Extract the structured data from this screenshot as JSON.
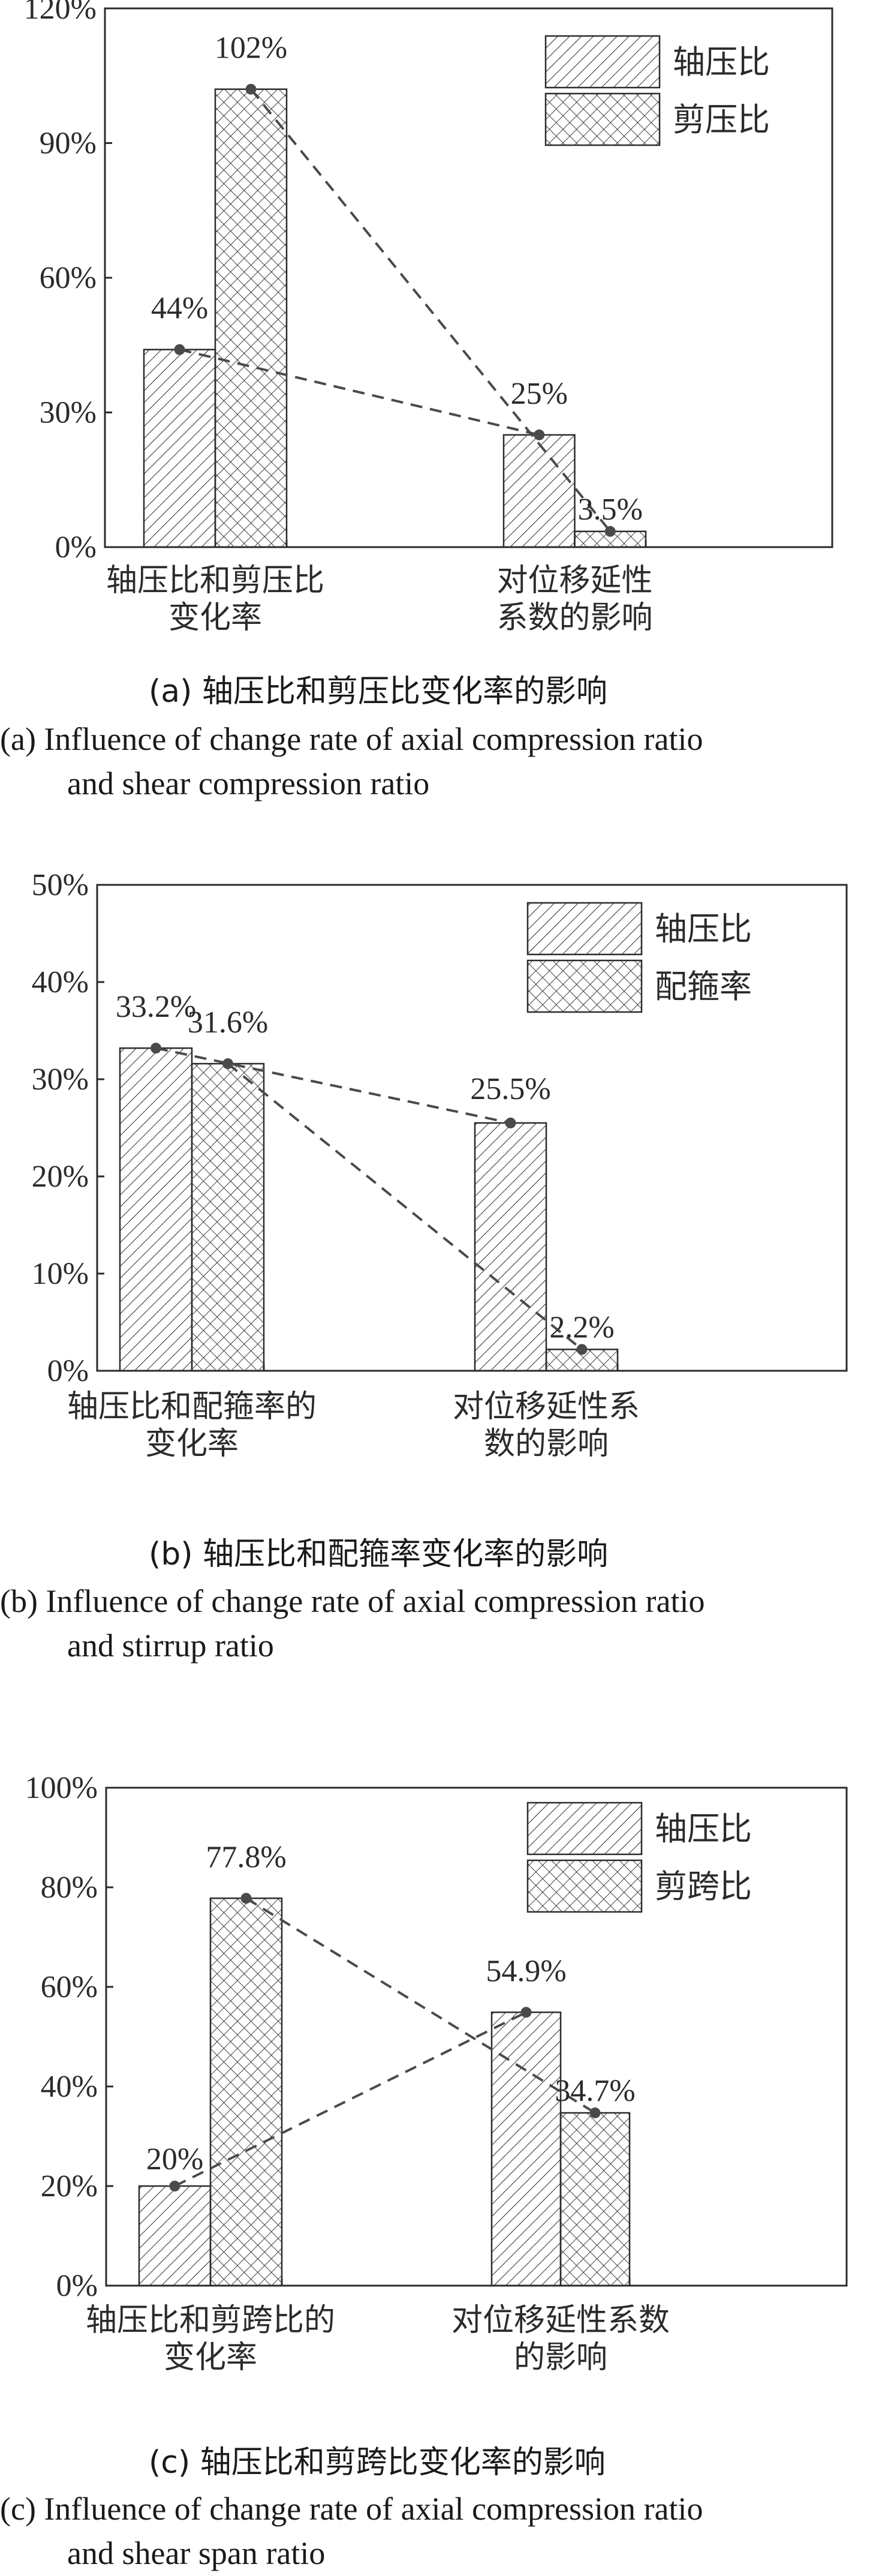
{
  "chart_data": [
    {
      "type": "bar",
      "categories": [
        [
          "轴压比和剪压比",
          "变化率"
        ],
        [
          "对位移延性",
          "系数的影响"
        ]
      ],
      "series": [
        {
          "name": "轴压比",
          "values": [
            44,
            25
          ],
          "labels": [
            "44%",
            "25%"
          ]
        },
        {
          "name": "剪压比",
          "values": [
            102,
            3.5
          ],
          "labels": [
            "102%",
            "3.5%"
          ]
        }
      ],
      "ylim": [
        0,
        120
      ],
      "yticks": [
        "0%",
        "30%",
        "60%",
        "90%",
        "120%"
      ],
      "ytick_values": [
        0,
        30,
        60,
        90,
        120
      ],
      "legend_position": "top-right",
      "caption_cn": "(a)  轴压比和剪压比变化率的影响",
      "caption_en": [
        "(a)  Influence of change rate of axial compression ratio",
        "and shear compression ratio"
      ]
    },
    {
      "type": "bar",
      "categories": [
        [
          "轴压比和配箍率的",
          "变化率"
        ],
        [
          "对位移延性系",
          "数的影响"
        ]
      ],
      "series": [
        {
          "name": "轴压比",
          "values": [
            33.2,
            25.5
          ],
          "labels": [
            "33.2%",
            "25.5%"
          ]
        },
        {
          "name": "配箍率",
          "values": [
            31.6,
            2.2
          ],
          "labels": [
            "31.6%",
            "2.2%"
          ]
        }
      ],
      "ylim": [
        0,
        50
      ],
      "yticks": [
        "0%",
        "10%",
        "20%",
        "30%",
        "40%",
        "50%"
      ],
      "ytick_values": [
        0,
        10,
        20,
        30,
        40,
        50
      ],
      "legend_position": "top-right",
      "caption_cn": "(b)  轴压比和配箍率变化率的影响",
      "caption_en": [
        "(b)  Influence of change rate of axial compression ratio",
        "and stirrup ratio"
      ]
    },
    {
      "type": "bar",
      "categories": [
        [
          "轴压比和剪跨比的",
          "变化率"
        ],
        [
          "对位移延性系数",
          "的影响"
        ]
      ],
      "series": [
        {
          "name": "轴压比",
          "values": [
            20,
            54.9
          ],
          "labels": [
            "20%",
            "54.9%"
          ]
        },
        {
          "name": "剪跨比",
          "values": [
            77.8,
            34.7
          ],
          "labels": [
            "77.8%",
            "34.7%"
          ]
        }
      ],
      "ylim": [
        0,
        100
      ],
      "yticks": [
        "0%",
        "20%",
        "40%",
        "60%",
        "80%",
        "100%"
      ],
      "ytick_values": [
        0,
        20,
        40,
        60,
        80,
        100
      ],
      "legend_position": "top-right",
      "caption_cn": "(c)  轴压比和剪跨比变化率的影响",
      "caption_en": [
        "(c)  Influence of change rate of axial compression ratio",
        "and shear span ratio"
      ]
    }
  ],
  "colors": {
    "ink": "#2b2b2b",
    "point": "#4a4a4a"
  }
}
